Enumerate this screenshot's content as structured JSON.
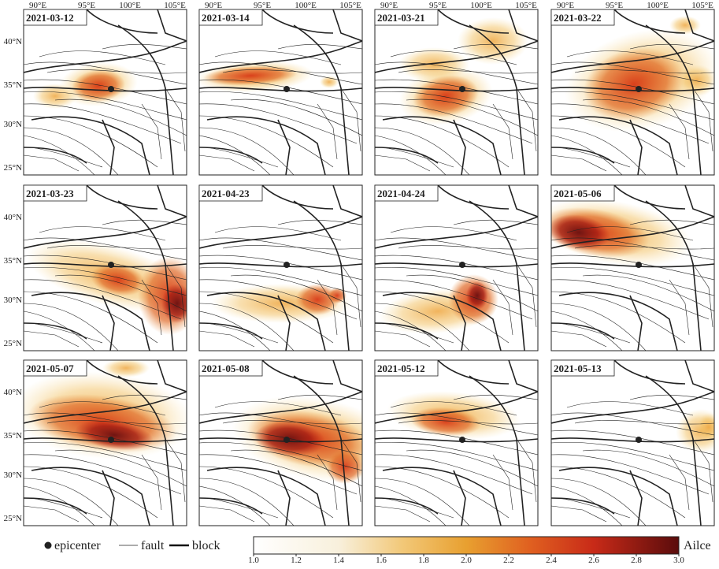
{
  "panels": [
    "2021-03-12",
    "2021-03-14",
    "2021-03-21",
    "2021-03-22",
    "2021-03-23",
    "2021-04-23",
    "2021-04-24",
    "2021-05-06",
    "2021-05-07",
    "2021-05-08",
    "2021-05-12",
    "2021-05-13"
  ],
  "lon_labels": [
    "90°E",
    "95°E",
    "100°E",
    "105°E"
  ],
  "lat_labels": [
    "40°N",
    "35°N",
    "30°N",
    "25°N"
  ],
  "legend": {
    "epicenter": "epicenter",
    "fault": "fault",
    "block": "block"
  },
  "colorbar": {
    "label": "Ailce",
    "lim": [
      1,
      3
    ],
    "ticks": [
      {
        "value": 1,
        "label": "1.0"
      },
      1.2,
      1.4,
      1.6,
      1.8,
      {
        "value": 2,
        "label": "2.0"
      },
      2.2,
      2.4,
      2.6,
      2.8,
      {
        "value": 3,
        "label": "3.0"
      }
    ]
  }
}
